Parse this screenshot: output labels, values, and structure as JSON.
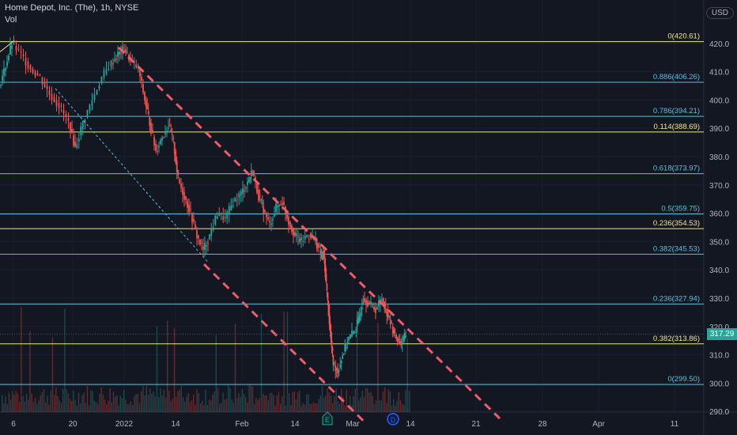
{
  "header": {
    "title": "Home Depot, Inc. (The), 1h, NYSE",
    "volume_label": "Vol"
  },
  "currency_button": "USD",
  "last_price": "317.29",
  "colors": {
    "bg": "#131722",
    "fib_cyan": "#5bc0de",
    "fib_yellow": "#f0e68c",
    "trend": "#ef5b6a",
    "up": "#26a69a",
    "down": "#ef5350"
  },
  "chart_data": {
    "type": "candlestick",
    "symbol": "Home Depot, Inc. (The)",
    "interval": "1h",
    "exchange": "NYSE",
    "y_axis": {
      "min": 285,
      "max": 420,
      "ticks": [
        420,
        410,
        400,
        390,
        380,
        370,
        360,
        350,
        340,
        330,
        320,
        310,
        300,
        290
      ]
    },
    "x_axis": {
      "ticks": [
        "6",
        "20",
        "2022",
        "14",
        "Feb",
        "14",
        "Mar",
        "14",
        "21",
        "28",
        "Apr",
        "11"
      ]
    },
    "last_price": 317.29,
    "fib_levels": [
      {
        "label": "0(420.61)",
        "price": 420.61,
        "color": "yellow"
      },
      {
        "label": "0.886(406.26)",
        "price": 406.26,
        "color": "cyan"
      },
      {
        "label": "0.786(394.21)",
        "price": 394.21,
        "color": "cyan"
      },
      {
        "label": "0.114(388.69)",
        "price": 388.69,
        "color": "yellow"
      },
      {
        "label": "0.618(373.97)",
        "price": 373.97,
        "color": "cyan"
      },
      {
        "label": "0.5(359.75)",
        "price": 359.75,
        "color": "cyan"
      },
      {
        "label": "0.236(354.53)",
        "price": 354.53,
        "color": "yellow"
      },
      {
        "label": "0.382(345.53)",
        "price": 345.53,
        "color": "cyan"
      },
      {
        "label": "0.236(327.94)",
        "price": 327.94,
        "color": "cyan"
      },
      {
        "label": "0.382(313.86)",
        "price": 313.86,
        "color": "yellow"
      },
      {
        "label": "0(299.50)",
        "price": 299.5,
        "color": "cyan"
      }
    ],
    "events": [
      "E",
      "D"
    ]
  }
}
